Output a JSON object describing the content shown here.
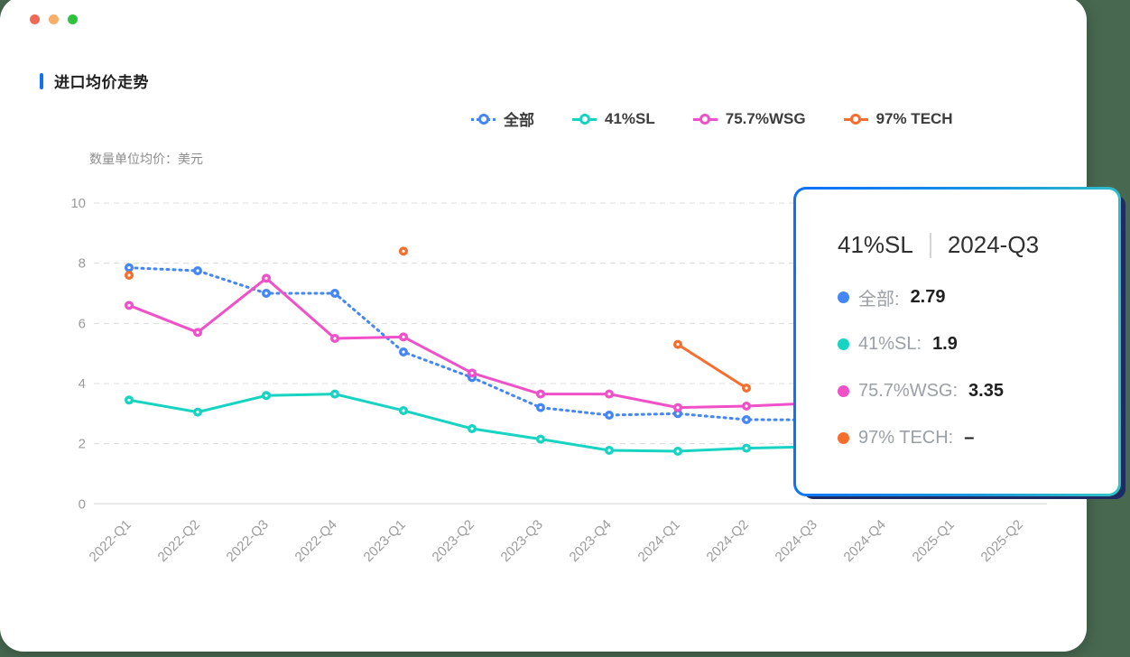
{
  "window": {
    "traffic_lights": [
      {
        "name": "close",
        "color": "#ee6a56"
      },
      {
        "name": "minimize",
        "color": "#f6ae68"
      },
      {
        "name": "zoom",
        "color": "#2ec23e"
      }
    ],
    "background_color": "#486950"
  },
  "header": {
    "title": "进口均价走势",
    "accent_color": "#1272ec",
    "unit_note": "数量单位均价：美元"
  },
  "chart_data": {
    "type": "line",
    "title": "进口均价走势",
    "ylabel": "数量单位均价：美元",
    "ylim": [
      0,
      10
    ],
    "yticks": [
      0,
      2,
      4,
      6,
      8,
      10
    ],
    "grid": "horizontal dashed, zero-line solid",
    "legend_position": "top",
    "categories": [
      "2022-Q1",
      "2022-Q2",
      "2022-Q3",
      "2022-Q4",
      "2023-Q1",
      "2023-Q2",
      "2023-Q3",
      "2023-Q4",
      "2024-Q1",
      "2024-Q2",
      "2024-Q3",
      "2024-Q4",
      "2025-Q1",
      "2025-Q2"
    ],
    "series": [
      {
        "name": "全部",
        "color": "#4486f6",
        "line_style": "dotted",
        "values": [
          7.85,
          7.75,
          7.0,
          7.0,
          5.05,
          4.2,
          3.2,
          2.95,
          3.0,
          2.8,
          2.79,
          null,
          null,
          null
        ]
      },
      {
        "name": "41%SL",
        "color": "#16d3c2",
        "line_style": "solid",
        "values": [
          3.45,
          3.05,
          3.6,
          3.65,
          3.1,
          2.5,
          2.15,
          1.78,
          1.75,
          1.85,
          1.9,
          null,
          null,
          null
        ]
      },
      {
        "name": "75.7%WSG",
        "color": "#f050c8",
        "line_style": "solid",
        "values": [
          6.6,
          5.7,
          7.5,
          5.5,
          5.55,
          4.35,
          3.65,
          3.65,
          3.2,
          3.25,
          3.35,
          null,
          null,
          null
        ]
      },
      {
        "name": "97% TECH",
        "color": "#f66e2e",
        "line_style": "solid",
        "values": [
          7.6,
          null,
          null,
          null,
          8.4,
          null,
          null,
          null,
          5.3,
          3.85,
          null,
          null,
          null,
          null
        ]
      }
    ]
  },
  "tooltip": {
    "series_name": "41%SL",
    "period": "2024-Q3",
    "rows": [
      {
        "label": "全部",
        "value": "2.79",
        "color": "#4486f6"
      },
      {
        "label": "41%SL",
        "value": "1.9",
        "color": "#16d3c2"
      },
      {
        "label": "75.7%WSG",
        "value": "3.35",
        "color": "#f050c8"
      },
      {
        "label": "97% TECH",
        "value": "–",
        "color": "#f66e2e"
      }
    ]
  }
}
